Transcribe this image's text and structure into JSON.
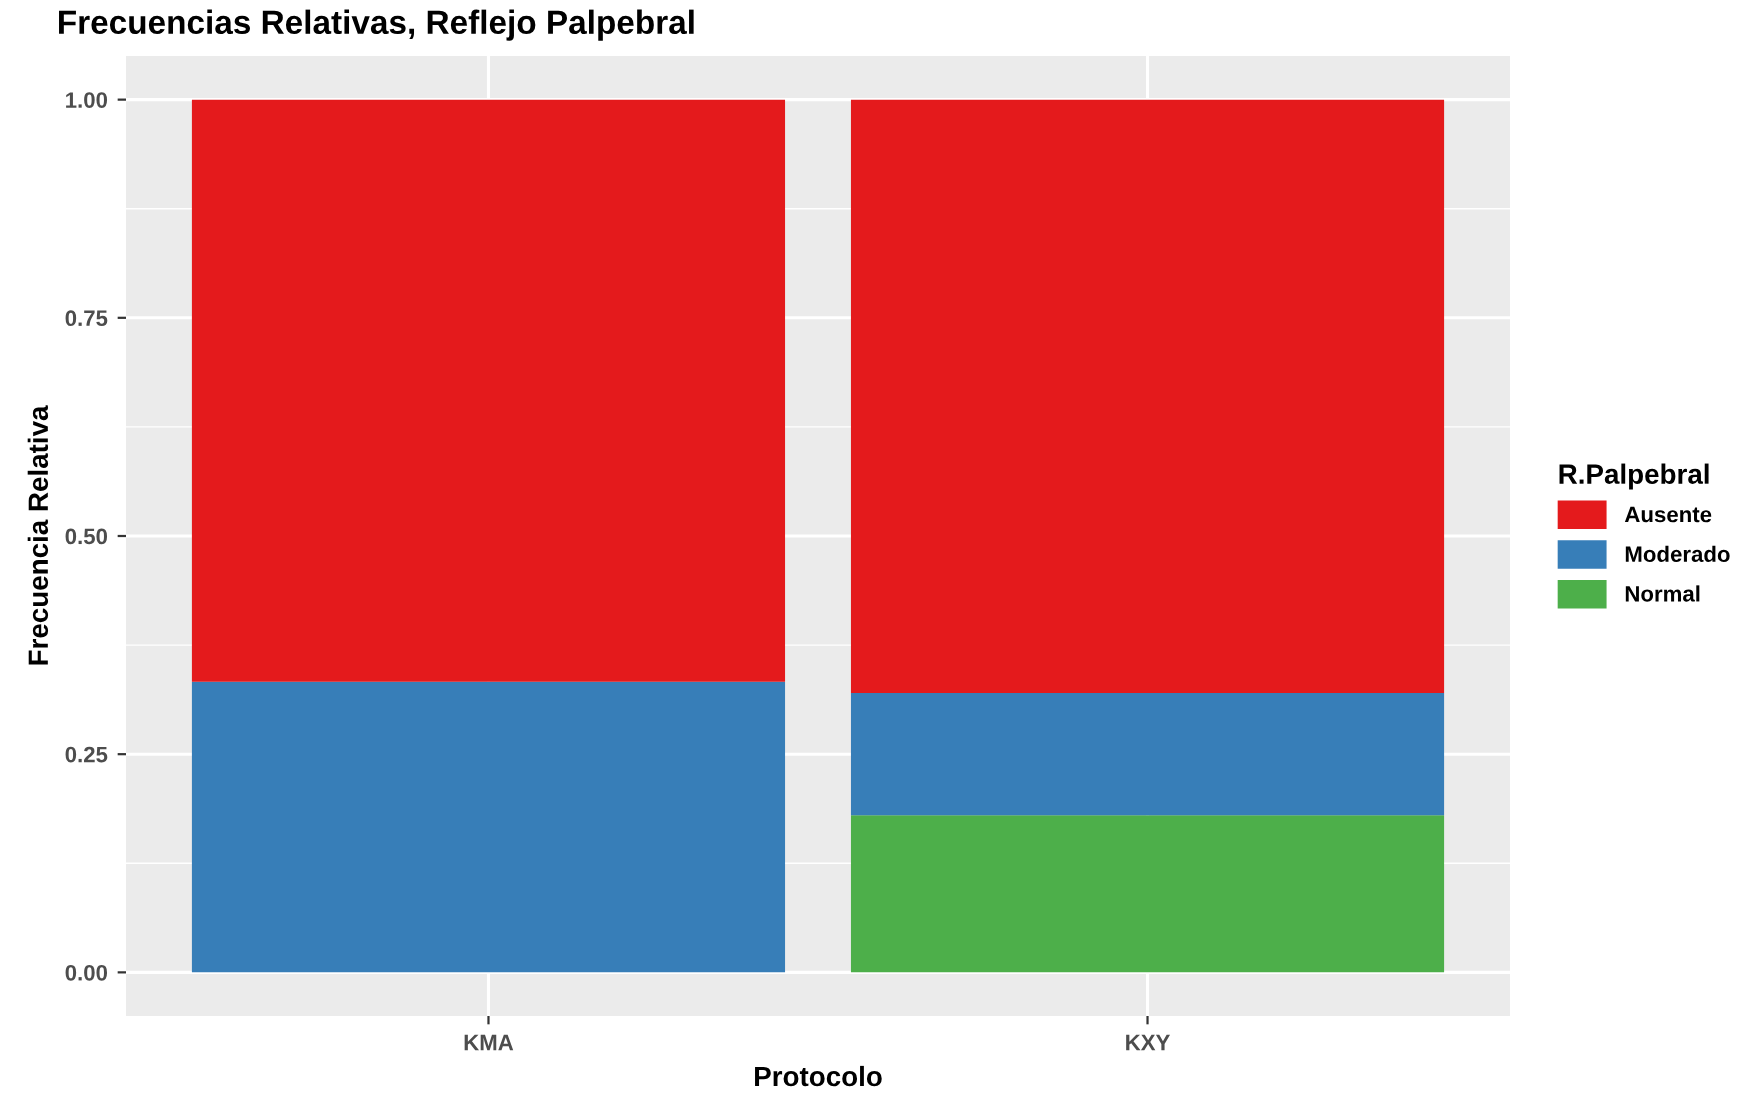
{
  "chart_data": {
    "type": "bar",
    "title": "Frecuencias Relativas, Reflejo Palpebral",
    "xlabel": "Protocolo",
    "ylabel": "Frecuencia Relativa",
    "legend_title": "R.Palpebral",
    "categories": [
      "KMA",
      "KXY"
    ],
    "stacked": true,
    "series": [
      {
        "name": "Normal",
        "color": "#4daf4a",
        "values": [
          0,
          0.18
        ]
      },
      {
        "name": "Moderado",
        "color": "#377eb8",
        "values": [
          0.333,
          0.14
        ]
      },
      {
        "name": "Ausente",
        "color": "#e41a1c",
        "values": [
          0.667,
          0.68
        ]
      }
    ],
    "ylim": [
      -0.05,
      1.05
    ],
    "yticks": [
      {
        "value": 0,
        "label": "0.00"
      },
      {
        "value": 0.25,
        "label": "0.25"
      },
      {
        "value": 0.5,
        "label": "0.50"
      },
      {
        "value": 0.75,
        "label": "0.75"
      },
      {
        "value": 1,
        "label": "1.00"
      }
    ],
    "grid": true,
    "legend": "right"
  }
}
